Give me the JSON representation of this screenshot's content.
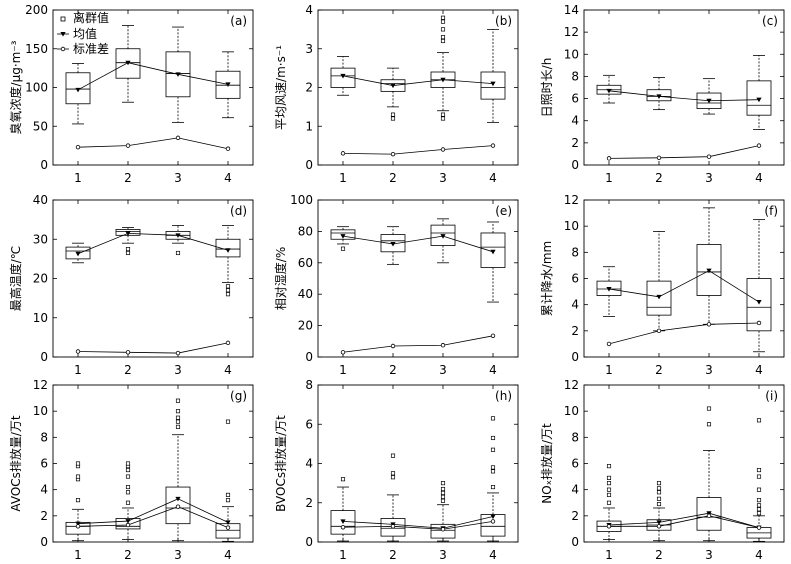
{
  "legend": {
    "outlier": "离群值",
    "mean": "均值",
    "sd": "标准差"
  },
  "chart_data": [
    {
      "type": "box",
      "panel": "(a)",
      "ylabel": "臭氧浓度/μg·m⁻³",
      "ylim": [
        0,
        200
      ],
      "yticks": [
        0,
        50,
        100,
        150,
        200
      ],
      "categories": [
        "1",
        "2",
        "3",
        "4"
      ],
      "boxes": [
        {
          "q1": 79,
          "median": 98,
          "q3": 119,
          "whislo": 53,
          "whishi": 131,
          "fliers": []
        },
        {
          "q1": 112,
          "median": 132,
          "q3": 150,
          "whislo": 81,
          "whishi": 180,
          "fliers": []
        },
        {
          "q1": 88,
          "median": 118,
          "q3": 146,
          "whislo": 55,
          "whishi": 178,
          "fliers": []
        },
        {
          "q1": 86,
          "median": 103,
          "q3": 121,
          "whislo": 61,
          "whishi": 146,
          "fliers": []
        }
      ],
      "mean": [
        97,
        132,
        117,
        104
      ],
      "sd": [
        23,
        25,
        35,
        21
      ]
    },
    {
      "type": "box",
      "panel": "(b)",
      "ylabel": "平均风速/m·s⁻¹",
      "ylim": [
        0,
        4
      ],
      "yticks": [
        0,
        1,
        2,
        3,
        4
      ],
      "categories": [
        "1",
        "2",
        "3",
        "4"
      ],
      "boxes": [
        {
          "q1": 2.0,
          "median": 2.3,
          "q3": 2.5,
          "whislo": 1.8,
          "whishi": 2.8,
          "fliers": []
        },
        {
          "q1": 1.9,
          "median": 2.1,
          "q3": 2.2,
          "whislo": 1.5,
          "whishi": 2.5,
          "fliers": [
            1.2,
            1.3
          ]
        },
        {
          "q1": 2.0,
          "median": 2.2,
          "q3": 2.4,
          "whislo": 1.4,
          "whishi": 2.9,
          "fliers": [
            1.2,
            1.3,
            3.2,
            3.3,
            3.5,
            3.7,
            3.8
          ]
        },
        {
          "q1": 1.7,
          "median": 2.0,
          "q3": 2.4,
          "whislo": 1.1,
          "whishi": 3.5,
          "fliers": []
        }
      ],
      "mean": [
        2.3,
        2.05,
        2.2,
        2.1
      ],
      "sd": [
        0.3,
        0.28,
        0.4,
        0.5
      ]
    },
    {
      "type": "box",
      "panel": "(c)",
      "ylabel": "日照时长/h",
      "ylim": [
        0,
        14
      ],
      "yticks": [
        0,
        2,
        4,
        6,
        8,
        10,
        12,
        14
      ],
      "categories": [
        "1",
        "2",
        "3",
        "4"
      ],
      "boxes": [
        {
          "q1": 6.4,
          "median": 6.8,
          "q3": 7.2,
          "whislo": 5.6,
          "whishi": 8.1,
          "fliers": []
        },
        {
          "q1": 5.8,
          "median": 6.2,
          "q3": 6.8,
          "whislo": 5.0,
          "whishi": 7.9,
          "fliers": []
        },
        {
          "q1": 5.1,
          "median": 5.6,
          "q3": 6.5,
          "whislo": 4.6,
          "whishi": 7.8,
          "fliers": []
        },
        {
          "q1": 4.5,
          "median": 5.4,
          "q3": 7.6,
          "whislo": 3.2,
          "whishi": 9.9,
          "fliers": []
        }
      ],
      "mean": [
        6.7,
        6.2,
        5.8,
        5.9
      ],
      "sd": [
        0.6,
        0.65,
        0.75,
        1.75
      ]
    },
    {
      "type": "box",
      "panel": "(d)",
      "ylabel": "最高温度/℃",
      "ylim": [
        0,
        40
      ],
      "yticks": [
        0,
        10,
        20,
        30,
        40
      ],
      "categories": [
        "1",
        "2",
        "3",
        "4"
      ],
      "boxes": [
        {
          "q1": 25,
          "median": 27,
          "q3": 28,
          "whislo": 24,
          "whishi": 29,
          "fliers": []
        },
        {
          "q1": 31,
          "median": 32,
          "q3": 32.5,
          "whislo": 29,
          "whishi": 33,
          "fliers": [
            26.5,
            27.5
          ]
        },
        {
          "q1": 30,
          "median": 31,
          "q3": 32,
          "whislo": 29,
          "whishi": 33.5,
          "fliers": [
            26.5
          ]
        },
        {
          "q1": 25.5,
          "median": 27.5,
          "q3": 30,
          "whislo": 19,
          "whishi": 33.5,
          "fliers": [
            16,
            17,
            18
          ]
        }
      ],
      "mean": [
        26.3,
        31.5,
        31,
        27.2
      ],
      "sd": [
        1.4,
        1.2,
        1.0,
        3.6
      ]
    },
    {
      "type": "box",
      "panel": "(e)",
      "ylabel": "相对湿度/%",
      "ylim": [
        0,
        100
      ],
      "yticks": [
        0,
        20,
        40,
        60,
        80,
        100
      ],
      "categories": [
        "1",
        "2",
        "3",
        "4"
      ],
      "boxes": [
        {
          "q1": 75,
          "median": 79,
          "q3": 81,
          "whislo": 72,
          "whishi": 83,
          "fliers": [
            69
          ]
        },
        {
          "q1": 67,
          "median": 74,
          "q3": 78,
          "whislo": 59,
          "whishi": 83,
          "fliers": []
        },
        {
          "q1": 71,
          "median": 79,
          "q3": 84,
          "whislo": 60,
          "whishi": 88,
          "fliers": []
        },
        {
          "q1": 57,
          "median": 70,
          "q3": 79,
          "whislo": 35,
          "whishi": 86,
          "fliers": []
        }
      ],
      "mean": [
        77,
        72,
        77,
        67
      ],
      "sd": [
        3,
        7,
        7.5,
        13.5
      ]
    },
    {
      "type": "box",
      "panel": "(f)",
      "ylabel": "累计降水/mm",
      "ylim": [
        0,
        12
      ],
      "yticks": [
        0,
        2,
        4,
        6,
        8,
        10,
        12
      ],
      "categories": [
        "1",
        "2",
        "3",
        "4"
      ],
      "boxes": [
        {
          "q1": 4.7,
          "median": 5.2,
          "q3": 5.8,
          "whislo": 3.1,
          "whishi": 6.9,
          "fliers": []
        },
        {
          "q1": 3.2,
          "median": 3.8,
          "q3": 5.8,
          "whislo": 2.0,
          "whishi": 9.6,
          "fliers": []
        },
        {
          "q1": 4.7,
          "median": 6.5,
          "q3": 8.6,
          "whislo": 2.5,
          "whishi": 11.4,
          "fliers": []
        },
        {
          "q1": 2.0,
          "median": 3.8,
          "q3": 6.0,
          "whislo": 0.4,
          "whishi": 10.5,
          "fliers": []
        }
      ],
      "mean": [
        5.2,
        4.6,
        6.6,
        4.2
      ],
      "sd": [
        1.0,
        2.0,
        2.5,
        2.6
      ]
    },
    {
      "type": "box",
      "panel": "(g)",
      "ylabel": "AVOCs排放量/万t",
      "ylim": [
        0,
        12
      ],
      "yticks": [
        0,
        2,
        4,
        6,
        8,
        10,
        12
      ],
      "categories": [
        "1",
        "2",
        "3",
        "4"
      ],
      "boxes": [
        {
          "q1": 0.6,
          "median": 1.2,
          "q3": 1.5,
          "whislo": 0.1,
          "whishi": 2.5,
          "fliers": [
            3.2,
            4.8,
            5.0,
            5.8,
            6.0
          ]
        },
        {
          "q1": 1.0,
          "median": 1.2,
          "q3": 1.8,
          "whislo": 0.2,
          "whishi": 2.6,
          "fliers": [
            3.0,
            3.8,
            4.2,
            5.0,
            5.5,
            5.8,
            6.0
          ]
        },
        {
          "q1": 1.4,
          "median": 2.6,
          "q3": 4.2,
          "whislo": 0.1,
          "whishi": 8.2,
          "fliers": [
            8.8,
            9.2,
            9.5,
            10.0,
            10.8
          ]
        },
        {
          "q1": 0.3,
          "median": 0.9,
          "q3": 1.4,
          "whislo": 0.05,
          "whishi": 2.7,
          "fliers": [
            3.2,
            3.6,
            9.2
          ]
        }
      ],
      "mean": [
        1.4,
        1.6,
        3.3,
        1.5
      ],
      "sd": [
        1.2,
        1.3,
        2.7,
        1.1
      ]
    },
    {
      "type": "box",
      "panel": "(h)",
      "ylabel": "BVOCs排放量/万t",
      "ylim": [
        0,
        8
      ],
      "yticks": [
        0,
        2,
        4,
        6,
        8
      ],
      "categories": [
        "1",
        "2",
        "3",
        "4"
      ],
      "boxes": [
        {
          "q1": 0.4,
          "median": 0.8,
          "q3": 1.6,
          "whislo": 0.05,
          "whishi": 2.8,
          "fliers": [
            3.2
          ]
        },
        {
          "q1": 0.3,
          "median": 0.7,
          "q3": 1.2,
          "whislo": 0.05,
          "whishi": 2.4,
          "fliers": [
            3.3,
            3.5,
            4.4
          ]
        },
        {
          "q1": 0.2,
          "median": 0.6,
          "q3": 0.9,
          "whislo": 0.05,
          "whishi": 1.9,
          "fliers": [
            2.1,
            2.3,
            2.5,
            2.7,
            3.0
          ]
        },
        {
          "q1": 0.3,
          "median": 0.8,
          "q3": 1.4,
          "whislo": 0.05,
          "whishi": 2.5,
          "fliers": [
            2.8,
            3.6,
            3.8,
            4.7,
            5.3,
            6.3
          ]
        }
      ],
      "mean": [
        1.05,
        0.9,
        0.7,
        1.3
      ],
      "sd": [
        0.75,
        0.8,
        0.65,
        1.05
      ]
    },
    {
      "type": "box",
      "panel": "(i)",
      "ylabel": "NOₓ排放量/万t",
      "ylim": [
        0,
        12
      ],
      "yticks": [
        0,
        2,
        4,
        6,
        8,
        10,
        12
      ],
      "categories": [
        "1",
        "2",
        "3",
        "4"
      ],
      "boxes": [
        {
          "q1": 0.8,
          "median": 1.2,
          "q3": 1.6,
          "whislo": 0.2,
          "whishi": 2.6,
          "fliers": [
            3.0,
            3.6,
            4.0,
            4.5,
            4.9,
            5.8
          ]
        },
        {
          "q1": 0.9,
          "median": 1.3,
          "q3": 1.7,
          "whislo": 0.1,
          "whishi": 2.6,
          "fliers": [
            2.9,
            3.3,
            3.8,
            4.1,
            4.5
          ]
        },
        {
          "q1": 0.9,
          "median": 1.9,
          "q3": 3.4,
          "whislo": 0.1,
          "whishi": 7.0,
          "fliers": [
            9.0,
            10.2
          ]
        },
        {
          "q1": 0.3,
          "median": 0.7,
          "q3": 1.1,
          "whislo": 0.05,
          "whishi": 2.0,
          "fliers": [
            2.2,
            2.5,
            2.8,
            3.2,
            4.0,
            5.0,
            5.5,
            9.3
          ]
        }
      ],
      "mean": [
        1.3,
        1.5,
        2.2,
        1.1
      ],
      "sd": [
        1.2,
        1.2,
        2.0,
        1.1
      ]
    }
  ]
}
